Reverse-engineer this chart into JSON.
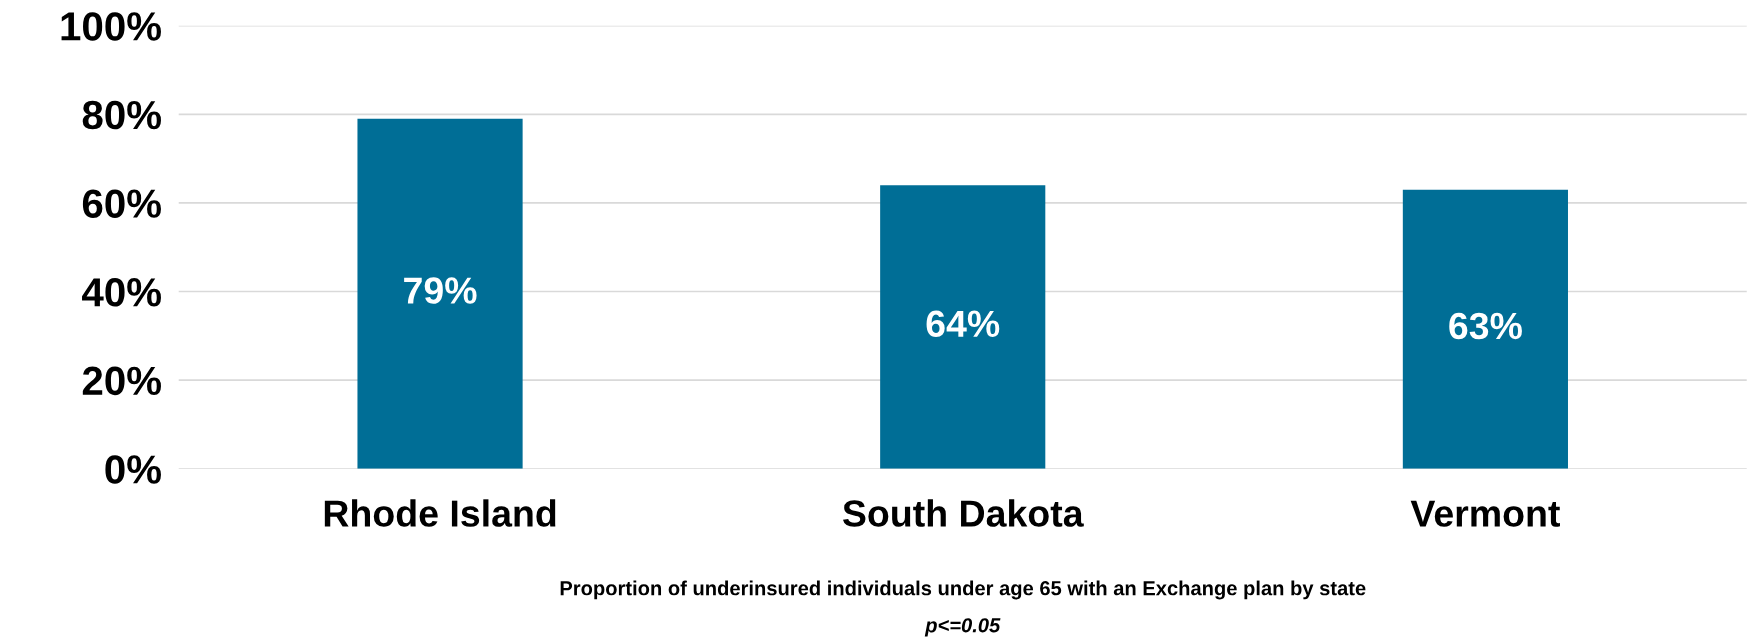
{
  "chart_data": {
    "type": "bar",
    "categories": [
      "Rhode Island",
      "South Dakota",
      "Vermont"
    ],
    "values": [
      79,
      64,
      63
    ],
    "color": "#006e96",
    "value_labels": [
      "79%",
      "64%",
      "63%"
    ],
    "xlabel": "Proportion of underinsured individuals under age 65 with an Exchange plan by state",
    "annotations": [
      "p<=0.05"
    ],
    "ylim": [
      0,
      100
    ],
    "yticks": [
      {
        "value": 0,
        "label": "0%"
      },
      {
        "value": 20,
        "label": "20%"
      },
      {
        "value": 40,
        "label": "40%"
      },
      {
        "value": 60,
        "label": "60%"
      },
      {
        "value": 80,
        "label": "80%"
      },
      {
        "value": 100,
        "label": "100%"
      }
    ],
    "grid": "y",
    "legend": false
  }
}
